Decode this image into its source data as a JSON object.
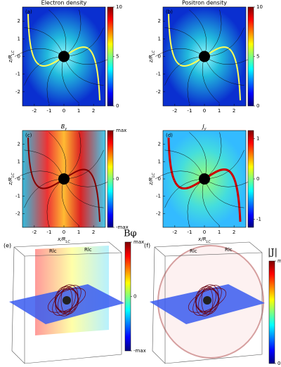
{
  "panels": [
    {
      "letter": "(a)",
      "title": "Electron density",
      "ylabel": {
        "main": "z/R",
        "sub": "LC"
      },
      "xlim": [
        -2.8,
        2.8
      ],
      "ylim": [
        -2.8,
        2.8
      ],
      "xticks": [
        -2,
        -1,
        0,
        1,
        2
      ],
      "yticks": [
        -2,
        -1,
        0,
        1,
        2
      ],
      "clim": [
        0,
        10
      ],
      "cticks": [
        0,
        5,
        10
      ]
    },
    {
      "letter": "(b)",
      "title": "Positron density",
      "ylabel": {
        "main": "z/R",
        "sub": "LC"
      },
      "xlim": [
        -2.8,
        2.8
      ],
      "ylim": [
        -2.8,
        2.8
      ],
      "xticks": [
        -2,
        -1,
        0,
        1,
        2
      ],
      "yticks": [
        -2,
        -1,
        0,
        1,
        2
      ],
      "clim": [
        0,
        10
      ],
      "cticks": [
        0,
        5,
        10
      ]
    },
    {
      "letter": "(c)",
      "title": {
        "main": "B",
        "sub": "y"
      },
      "xlabel": {
        "main": "x/R",
        "sub": "LC"
      },
      "ylabel": {
        "main": "z/R",
        "sub": "LC"
      },
      "xlim": [
        -2.8,
        2.8
      ],
      "ylim": [
        -2.8,
        2.8
      ],
      "xticks": [
        -2,
        -1,
        0,
        1,
        2
      ],
      "yticks": [
        -2,
        -1,
        0,
        1,
        2
      ],
      "clim": [
        -1,
        1
      ],
      "cticks": [
        {
          "value": -1,
          "label": "-max"
        },
        0,
        {
          "value": 1,
          "label": "max"
        }
      ]
    },
    {
      "letter": "(d)",
      "title": {
        "main": "J",
        "sub": "y"
      },
      "xlabel": {
        "main": "x/R",
        "sub": "LC"
      },
      "ylabel": {
        "main": "z/R",
        "sub": "LC"
      },
      "xlim": [
        -2.8,
        2.8
      ],
      "ylim": [
        -2.8,
        2.8
      ],
      "xticks": [
        -2,
        -1,
        0,
        1,
        2
      ],
      "yticks": [
        -2,
        -1,
        0,
        1,
        2
      ],
      "clim": [
        -1.2,
        1.2
      ],
      "cticks": [
        -1,
        0,
        1
      ]
    }
  ],
  "views": [
    {
      "letter": "(e)",
      "annotations": [
        "Rlc",
        "Rlc"
      ],
      "cbar_label": "Bφ",
      "clim": [
        -1,
        1
      ],
      "cticks": [
        {
          "value": -1,
          "label": "-max"
        },
        0,
        {
          "value": 1,
          "label": "max"
        }
      ]
    },
    {
      "letter": "(f)",
      "annotations": [
        "Rlc",
        "Rlc"
      ],
      "cbar_label": "|J|",
      "clim": [
        0,
        1
      ],
      "cticks": [
        0,
        {
          "value": 1,
          "label": "max"
        }
      ]
    }
  ]
}
